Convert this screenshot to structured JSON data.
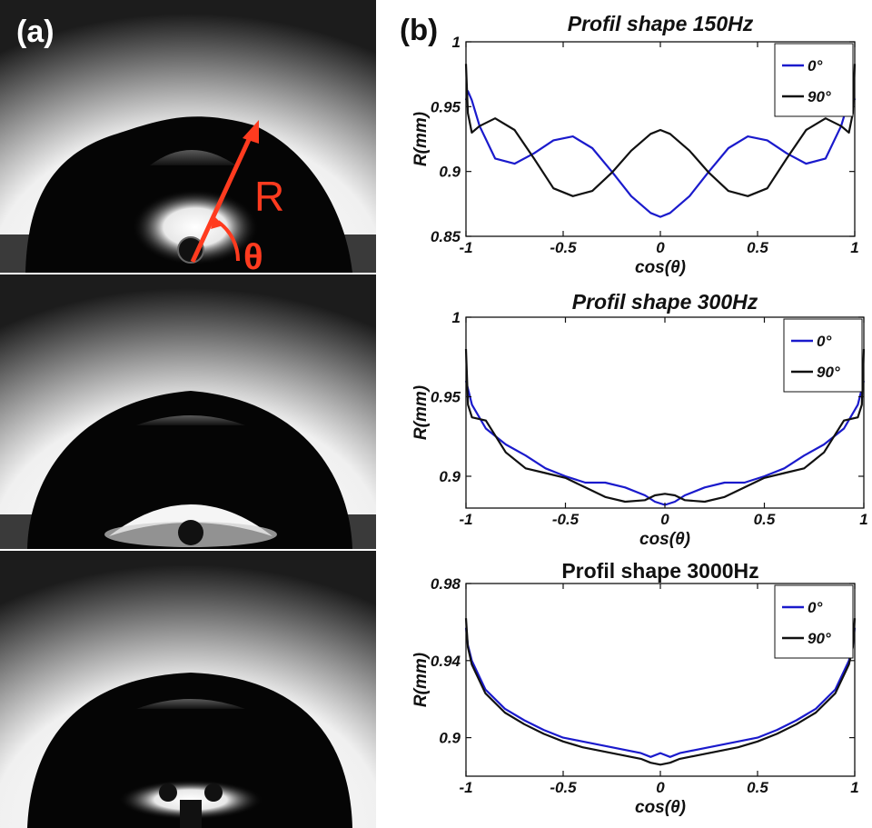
{
  "panel_a": {
    "label": "(a)",
    "annotation_radius": "R",
    "annotation_angle": "θ",
    "annotation_color": "#ff3b1f"
  },
  "panel_b": {
    "label": "(b)"
  },
  "colors": {
    "series_0": "#1a1acc",
    "series_90": "#111111"
  },
  "chart_data": [
    {
      "type": "line",
      "title": "Profil shape 150Hz",
      "xlabel": "cos(θ)",
      "ylabel": "R(mm)",
      "xlim": [
        -1,
        1
      ],
      "ylim": [
        0.85,
        1
      ],
      "xticks": [
        "-1",
        "-0.5",
        "0",
        "0.5",
        "1"
      ],
      "yticks": [
        "0.85",
        "0.9",
        "0.95",
        "1"
      ],
      "legend_position": "top-right",
      "series": [
        {
          "name": "0°",
          "color": "#1a1acc",
          "x": [
            -1,
            -0.99,
            -0.97,
            -0.93,
            -0.85,
            -0.75,
            -0.65,
            -0.55,
            -0.45,
            -0.35,
            -0.25,
            -0.15,
            -0.05,
            0,
            0.05,
            0.15,
            0.25,
            0.35,
            0.45,
            0.55,
            0.65,
            0.75,
            0.85,
            0.93,
            0.97,
            0.99,
            1
          ],
          "y": [
            0.955,
            0.962,
            0.955,
            0.935,
            0.91,
            0.906,
            0.914,
            0.924,
            0.927,
            0.918,
            0.9,
            0.881,
            0.868,
            0.865,
            0.868,
            0.881,
            0.9,
            0.918,
            0.927,
            0.924,
            0.914,
            0.906,
            0.91,
            0.935,
            0.955,
            0.962,
            0.955
          ]
        },
        {
          "name": "90°",
          "color": "#111111",
          "x": [
            -1,
            -0.99,
            -0.97,
            -0.93,
            -0.85,
            -0.75,
            -0.65,
            -0.55,
            -0.45,
            -0.35,
            -0.25,
            -0.15,
            -0.05,
            0,
            0.05,
            0.15,
            0.25,
            0.35,
            0.45,
            0.55,
            0.65,
            0.75,
            0.85,
            0.93,
            0.97,
            0.99,
            1
          ],
          "y": [
            0.983,
            0.945,
            0.93,
            0.935,
            0.941,
            0.932,
            0.91,
            0.887,
            0.881,
            0.885,
            0.899,
            0.916,
            0.929,
            0.932,
            0.929,
            0.916,
            0.899,
            0.885,
            0.881,
            0.887,
            0.91,
            0.932,
            0.941,
            0.935,
            0.93,
            0.945,
            0.983
          ]
        }
      ]
    },
    {
      "type": "line",
      "title": "Profil shape 300Hz",
      "xlabel": "cos(θ)",
      "ylabel": "R(mm)",
      "xlim": [
        -1,
        1
      ],
      "ylim": [
        0.88,
        1
      ],
      "xticks": [
        "-1",
        "-0.5",
        "0",
        "0.5",
        "1"
      ],
      "yticks": [
        "0.9",
        "0.95",
        "1"
      ],
      "legend_position": "top-right",
      "series": [
        {
          "name": "0°",
          "color": "#1a1acc",
          "x": [
            -1,
            -0.99,
            -0.97,
            -0.9,
            -0.8,
            -0.7,
            -0.6,
            -0.5,
            -0.4,
            -0.3,
            -0.2,
            -0.1,
            -0.05,
            0,
            0.05,
            0.1,
            0.2,
            0.3,
            0.4,
            0.5,
            0.6,
            0.7,
            0.8,
            0.9,
            0.97,
            0.99,
            1
          ],
          "y": [
            0.96,
            0.955,
            0.945,
            0.93,
            0.92,
            0.913,
            0.905,
            0.9,
            0.896,
            0.896,
            0.893,
            0.888,
            0.884,
            0.882,
            0.884,
            0.888,
            0.893,
            0.896,
            0.896,
            0.9,
            0.905,
            0.913,
            0.92,
            0.93,
            0.945,
            0.955,
            0.96
          ]
        },
        {
          "name": "90°",
          "color": "#111111",
          "x": [
            -1,
            -0.99,
            -0.97,
            -0.9,
            -0.8,
            -0.7,
            -0.6,
            -0.5,
            -0.4,
            -0.3,
            -0.2,
            -0.1,
            -0.05,
            0,
            0.05,
            0.1,
            0.2,
            0.3,
            0.4,
            0.5,
            0.6,
            0.7,
            0.8,
            0.9,
            0.97,
            0.99,
            1
          ],
          "y": [
            0.98,
            0.945,
            0.937,
            0.935,
            0.915,
            0.905,
            0.902,
            0.899,
            0.893,
            0.887,
            0.884,
            0.885,
            0.888,
            0.889,
            0.888,
            0.885,
            0.884,
            0.887,
            0.893,
            0.899,
            0.902,
            0.905,
            0.915,
            0.935,
            0.937,
            0.945,
            0.98
          ]
        }
      ]
    },
    {
      "type": "line",
      "title": "Profil shape 3000Hz",
      "xlabel": "cos(θ)",
      "ylabel": "R(mm)",
      "xlim": [
        -1,
        1
      ],
      "ylim": [
        0.88,
        0.98
      ],
      "xticks": [
        "-1",
        "-0.5",
        "0",
        "0.5",
        "1"
      ],
      "yticks": [
        "0.9",
        "0.94",
        "0.98"
      ],
      "legend_position": "top-right",
      "series": [
        {
          "name": "0°",
          "color": "#1a1acc",
          "x": [
            -1,
            -0.99,
            -0.97,
            -0.9,
            -0.8,
            -0.7,
            -0.6,
            -0.5,
            -0.4,
            -0.3,
            -0.2,
            -0.1,
            -0.05,
            0,
            0.05,
            0.1,
            0.2,
            0.3,
            0.4,
            0.5,
            0.6,
            0.7,
            0.8,
            0.9,
            0.97,
            0.99,
            1
          ],
          "y": [
            0.957,
            0.948,
            0.94,
            0.925,
            0.915,
            0.909,
            0.904,
            0.9,
            0.898,
            0.896,
            0.894,
            0.892,
            0.89,
            0.892,
            0.89,
            0.892,
            0.894,
            0.896,
            0.898,
            0.9,
            0.904,
            0.909,
            0.915,
            0.925,
            0.94,
            0.948,
            0.957
          ]
        },
        {
          "name": "90°",
          "color": "#111111",
          "x": [
            -1,
            -0.99,
            -0.97,
            -0.9,
            -0.8,
            -0.7,
            -0.6,
            -0.5,
            -0.4,
            -0.3,
            -0.2,
            -0.1,
            -0.05,
            0,
            0.05,
            0.1,
            0.2,
            0.3,
            0.4,
            0.5,
            0.6,
            0.7,
            0.8,
            0.9,
            0.97,
            0.99,
            1
          ],
          "y": [
            0.962,
            0.947,
            0.938,
            0.923,
            0.913,
            0.907,
            0.902,
            0.898,
            0.895,
            0.893,
            0.891,
            0.889,
            0.887,
            0.886,
            0.887,
            0.889,
            0.891,
            0.893,
            0.895,
            0.898,
            0.902,
            0.907,
            0.913,
            0.923,
            0.938,
            0.947,
            0.962
          ]
        }
      ]
    }
  ]
}
